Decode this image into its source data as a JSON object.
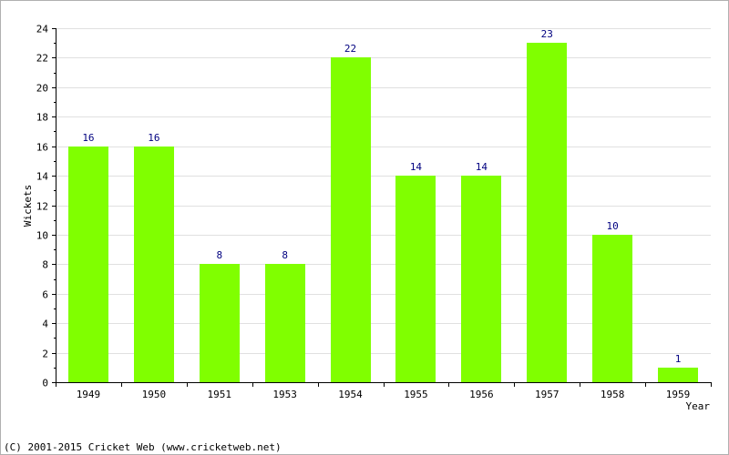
{
  "chart_data": {
    "type": "bar",
    "categories": [
      "1949",
      "1950",
      "1951",
      "1953",
      "1954",
      "1955",
      "1956",
      "1957",
      "1958",
      "1959"
    ],
    "values": [
      16,
      16,
      8,
      8,
      22,
      14,
      14,
      23,
      10,
      1
    ],
    "title": "",
    "xlabel": "Year",
    "ylabel": "Wickets",
    "ylim": [
      0,
      24
    ],
    "yticks": [
      0,
      2,
      4,
      6,
      8,
      10,
      12,
      14,
      16,
      18,
      20,
      22,
      24
    ],
    "grid": true,
    "data_labels": true,
    "bar_color": "#80ff00",
    "label_color": "#000080"
  },
  "footer": {
    "copyright": "(C) 2001-2015 Cricket Web (www.cricketweb.net)"
  }
}
